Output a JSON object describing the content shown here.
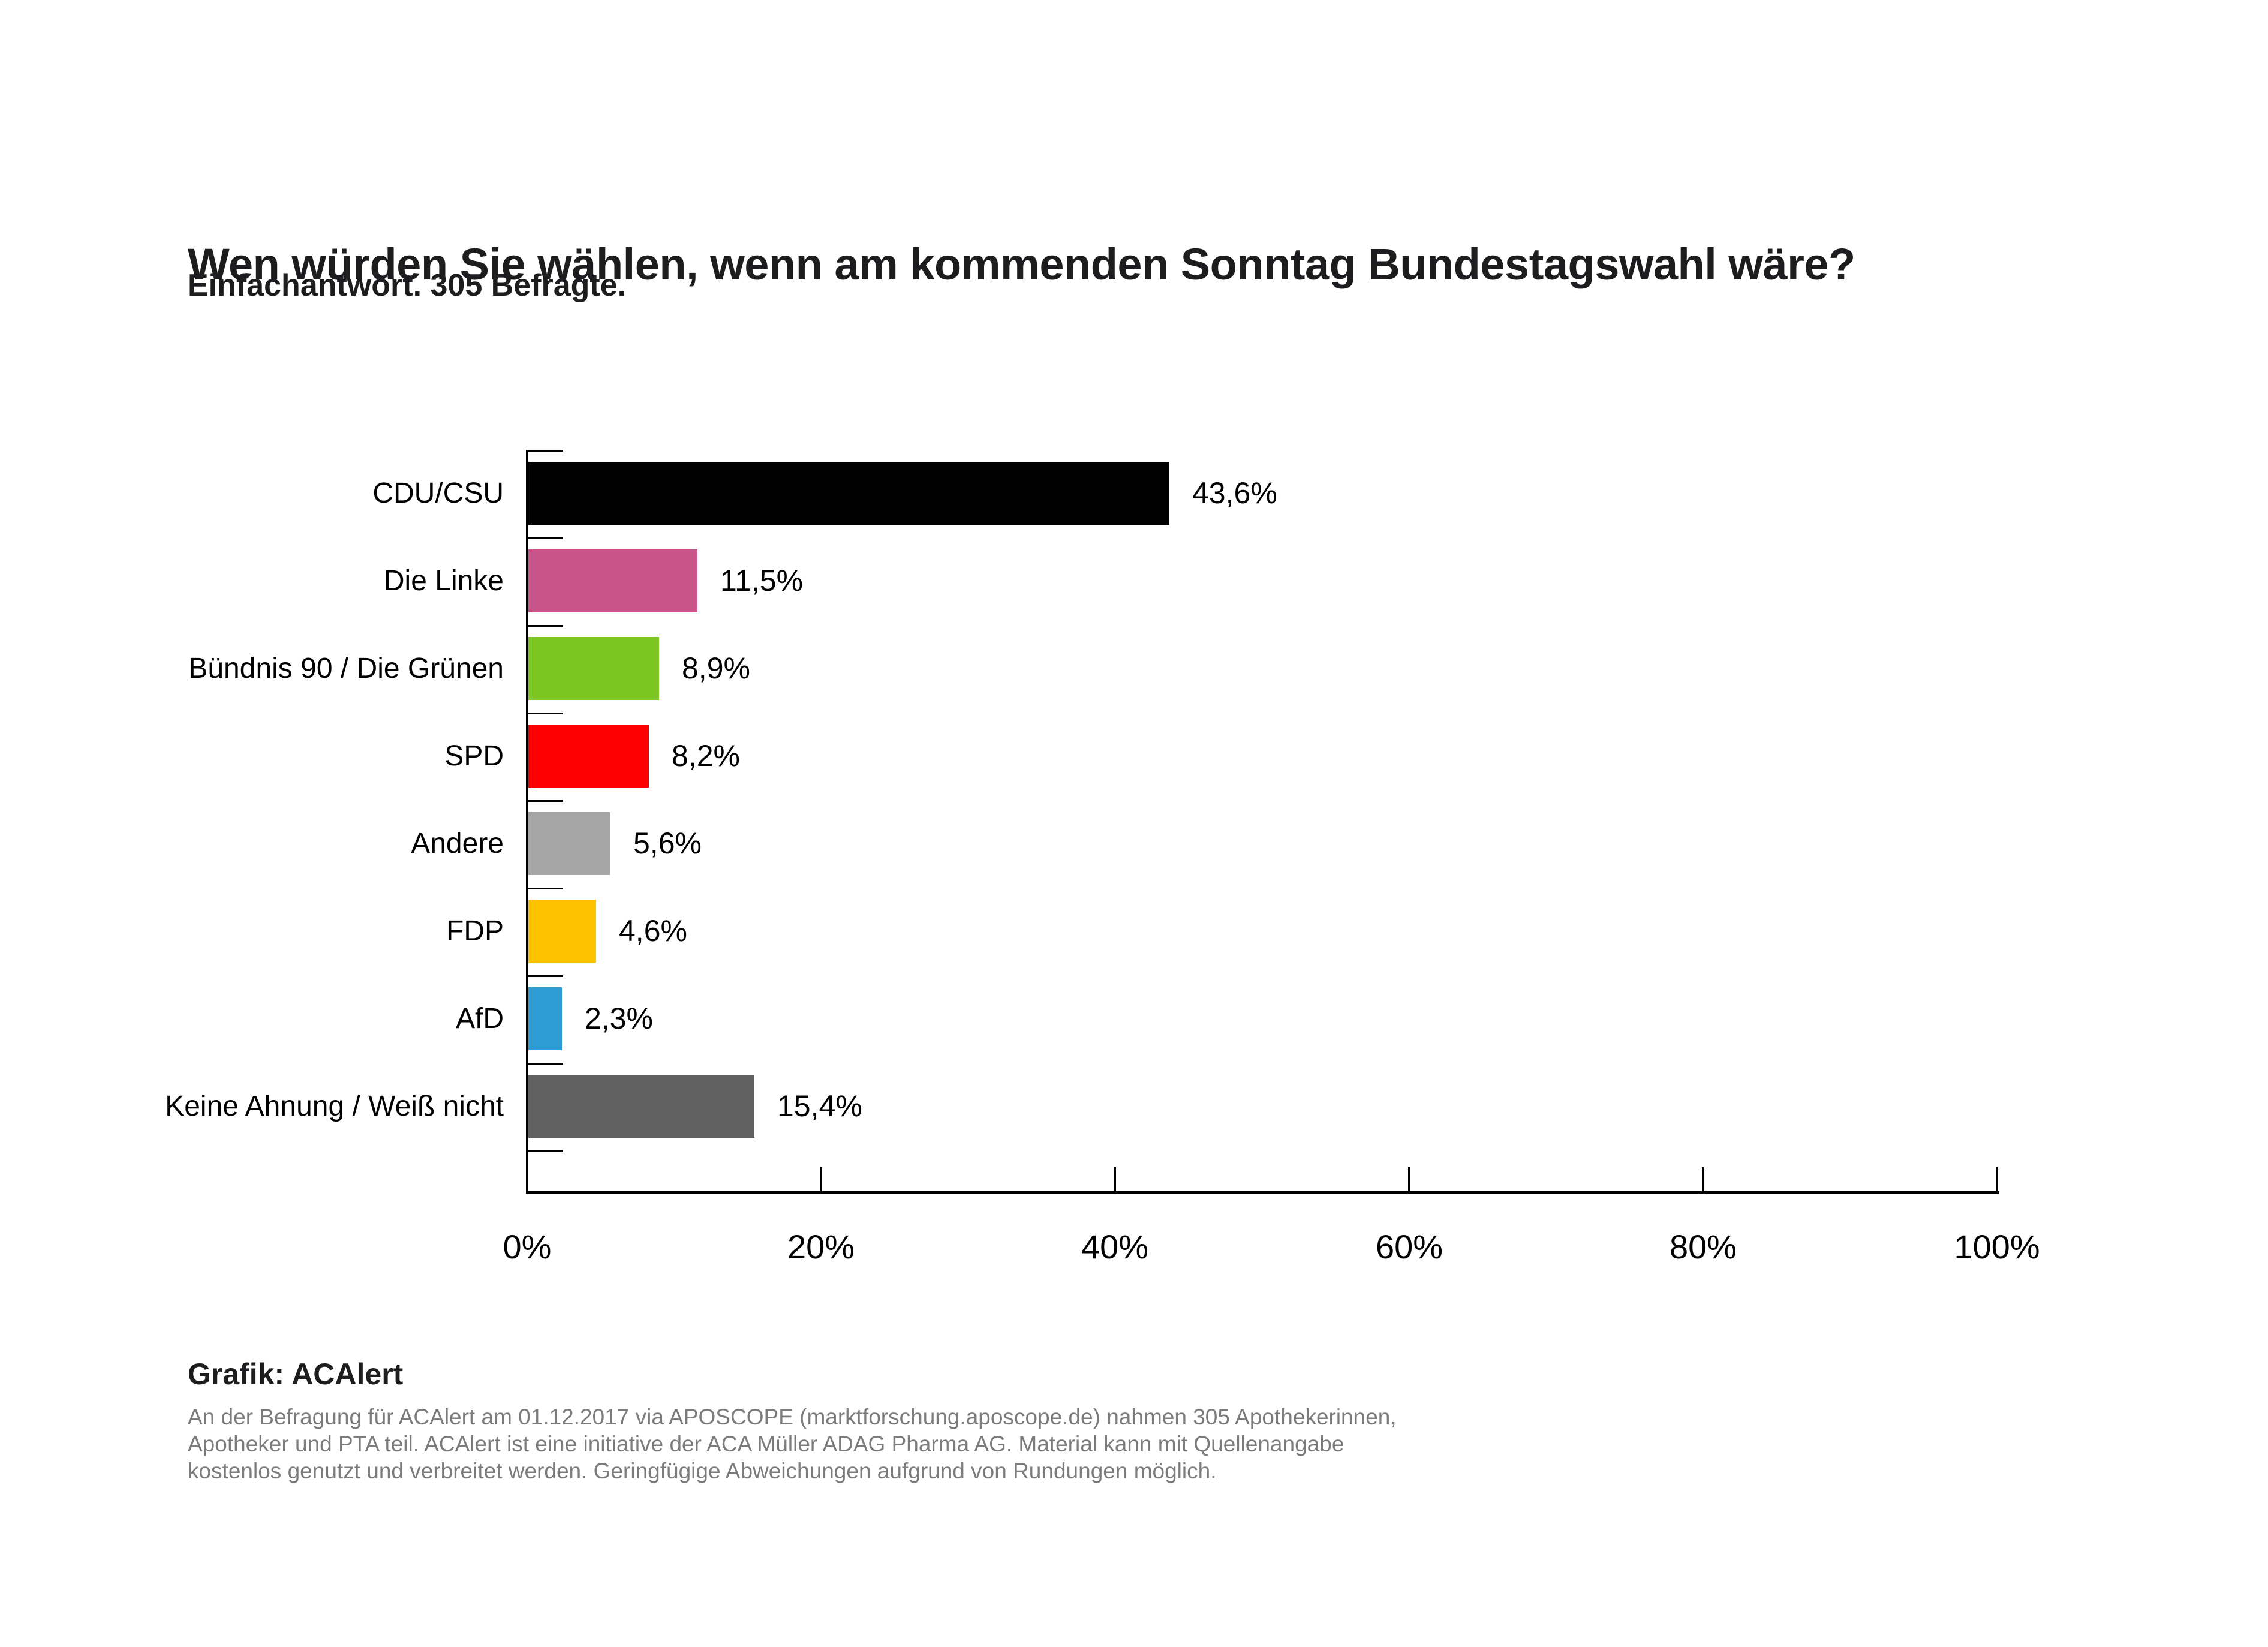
{
  "header": {
    "title": "Wen würden Sie wählen, wenn am kommenden Sonntag Bundestagswahl wäre?",
    "subtitle": "Einfachantwort. 305 Befragte."
  },
  "chart_data": {
    "type": "bar",
    "orientation": "horizontal",
    "title": "Wen würden Sie wählen, wenn am kommenden Sonntag Bundestagswahl wäre?",
    "subtitle": "Einfachantwort. 305 Befragte.",
    "categories": [
      "CDU/CSU",
      "Die Linke",
      "Bündnis 90 / Die Grünen",
      "SPD",
      "Andere",
      "FDP",
      "AfD",
      "Keine Ahnung / Weiß nicht"
    ],
    "values": [
      43.6,
      11.5,
      8.9,
      8.2,
      5.6,
      4.6,
      2.3,
      15.4
    ],
    "value_labels": [
      "43,6%",
      "11,5%",
      "8,9%",
      "8,2%",
      "5,6%",
      "4,6%",
      "2,3%",
      "15,4%"
    ],
    "colors": [
      "#000000",
      "#c95489",
      "#7cc621",
      "#ff0000",
      "#a5a5a5",
      "#fcc200",
      "#2d9bd4",
      "#606060"
    ],
    "x_axis": {
      "min": 0,
      "max": 100,
      "ticks": [
        0,
        20,
        40,
        60,
        80,
        100
      ],
      "tick_labels": [
        "0%",
        "20%",
        "40%",
        "60%",
        "80%",
        "100%"
      ]
    },
    "xlabel": "",
    "ylabel": "",
    "grid": false,
    "legend": "none"
  },
  "footer": {
    "credit": "Grafik: ACAlert",
    "note": "An der Befragung für ACAlert am 01.12.2017 via APOSCOPE (marktforschung.aposcope.de) nahmen 305 Apothekerinnen,\nApotheker und PTA teil. ACAlert ist eine initiative der ACA Müller ADAG Pharma AG. Material kann mit Quellenangabe\nkostenlos genutzt und verbreitet werden. Geringfügige Abweichungen aufgrund von Rundungen möglich."
  }
}
